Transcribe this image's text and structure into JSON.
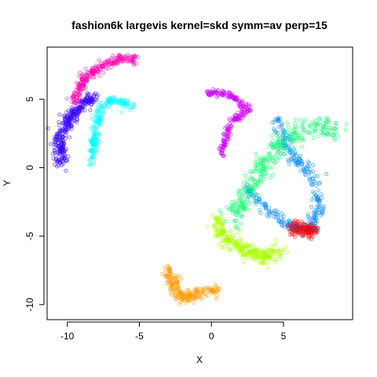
{
  "chart_data": {
    "type": "scatter",
    "title": "fashion6k largevis kernel=skd symm=av perp=15",
    "xlabel": "X",
    "ylabel": "Y",
    "xlim": [
      -11.4,
      9.8
    ],
    "ylim": [
      -11.1,
      8.8
    ],
    "xticks": [
      -10,
      -5,
      0,
      5
    ],
    "yticks": [
      -10,
      -5,
      0,
      5
    ],
    "grid": false,
    "legend": "none",
    "marker": "open circle",
    "cluster_colors": [
      "#ff00aa",
      "#00ffff",
      "#3300ff",
      "#cc00ff",
      "#aaff00",
      "#00ff66",
      "#0088ff",
      "#ff0000",
      "#ff9900"
    ],
    "series": [
      {
        "color": "#ff00aa",
        "shape": "line",
        "n": 240,
        "spread": 0.35,
        "points": [
          [
            -9.6,
            4.8
          ],
          [
            -8.8,
            6.5
          ],
          [
            -7.6,
            7.4
          ],
          [
            -6.2,
            8.0
          ],
          [
            -5.3,
            7.9
          ]
        ]
      },
      {
        "color": "#00ffff",
        "shape": "line",
        "n": 220,
        "spread": 0.35,
        "points": [
          [
            -8.3,
            0.2
          ],
          [
            -8.1,
            2.2
          ],
          [
            -7.8,
            4.2
          ],
          [
            -6.8,
            5.0
          ],
          [
            -5.5,
            4.5
          ]
        ]
      },
      {
        "color": "#3300ff",
        "shape": "line",
        "n": 320,
        "spread": 0.45,
        "points": [
          [
            -10.4,
            0.4
          ],
          [
            -10.5,
            2.3
          ],
          [
            -9.8,
            3.8
          ],
          [
            -8.8,
            4.7
          ],
          [
            -8.0,
            5.1
          ]
        ]
      },
      {
        "color": "#cc00ff",
        "shape": "line",
        "n": 230,
        "spread": 0.28,
        "points": [
          [
            -0.4,
            5.4
          ],
          [
            1.0,
            5.5
          ],
          [
            2.6,
            4.3
          ],
          [
            1.3,
            3.3
          ],
          [
            0.7,
            1.0
          ]
        ]
      },
      {
        "color": "#aaff00",
        "shape": "line",
        "n": 300,
        "spread": 0.55,
        "points": [
          [
            0.3,
            -3.7
          ],
          [
            0.9,
            -5.1
          ],
          [
            2.3,
            -6.0
          ],
          [
            3.6,
            -6.5
          ],
          [
            4.8,
            -6.2
          ]
        ]
      },
      {
        "color": "#00ff66",
        "shape": "line",
        "n": 340,
        "spread": 0.75,
        "points": [
          [
            1.3,
            -4.0
          ],
          [
            2.8,
            -1.3
          ],
          [
            4.0,
            0.8
          ],
          [
            5.5,
            2.4
          ],
          [
            7.5,
            3.2
          ],
          [
            8.8,
            2.6
          ]
        ]
      },
      {
        "color": "#0088ff",
        "shape": "line",
        "n": 300,
        "spread": 0.45,
        "points": [
          [
            2.4,
            -1.6
          ],
          [
            3.6,
            -2.8
          ],
          [
            5.0,
            -4.0
          ],
          [
            6.6,
            -4.6
          ],
          [
            7.5,
            -3.0
          ],
          [
            7.2,
            -1.0
          ],
          [
            5.2,
            1.5
          ],
          [
            4.6,
            3.5
          ]
        ]
      },
      {
        "color": "#ff0000",
        "shape": "line",
        "n": 180,
        "spread": 0.45,
        "points": [
          [
            5.4,
            -4.3
          ],
          [
            6.3,
            -4.5
          ],
          [
            7.2,
            -4.6
          ]
        ]
      },
      {
        "color": "#ff9900",
        "shape": "line",
        "n": 220,
        "spread": 0.45,
        "points": [
          [
            -3.0,
            -7.4
          ],
          [
            -2.6,
            -8.6
          ],
          [
            -2.1,
            -9.6
          ],
          [
            -1.2,
            -9.3
          ],
          [
            0.4,
            -8.9
          ]
        ]
      }
    ]
  }
}
